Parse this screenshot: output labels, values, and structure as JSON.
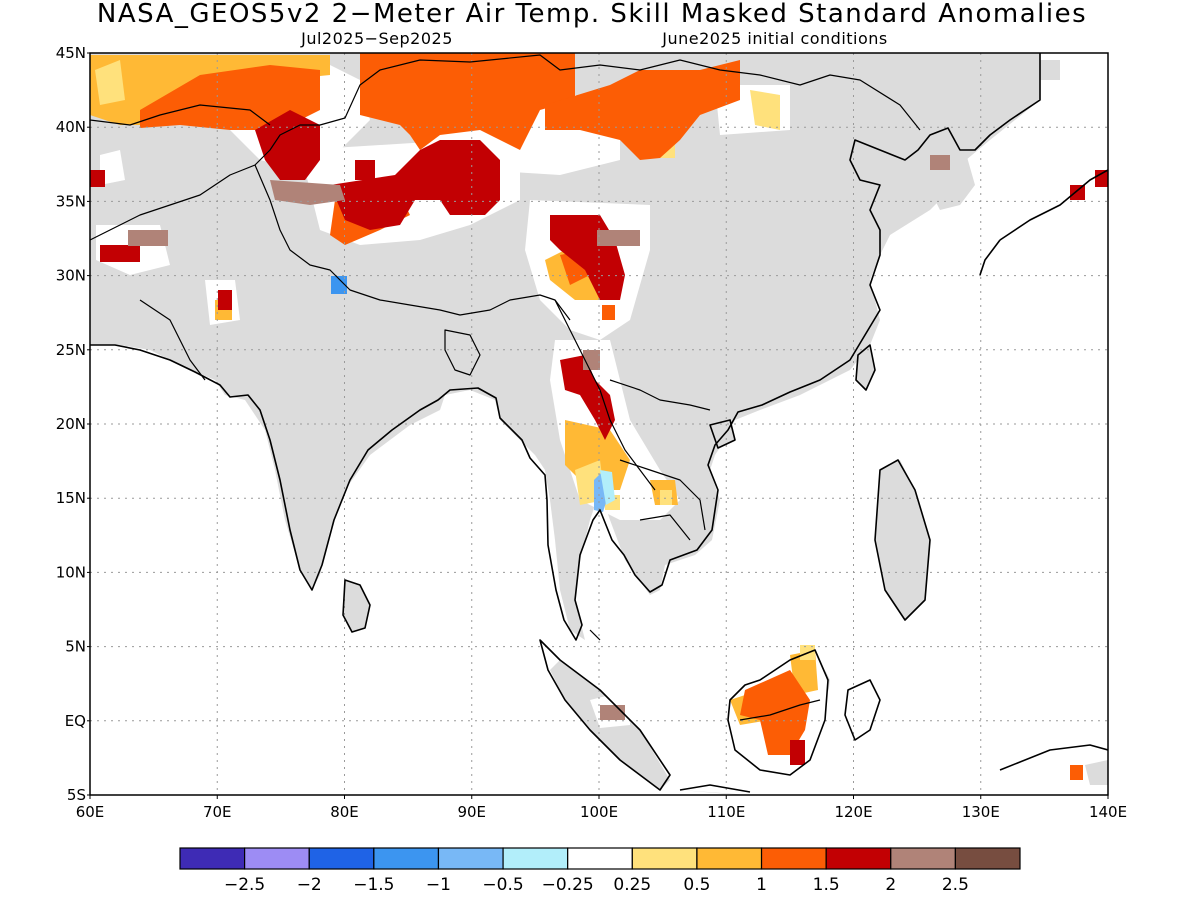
{
  "title": "NASA_GEOS5v2 2−Meter Air Temp. Skill Masked Standard Anomalies",
  "subtitle_left": "Jul2025−Sep2025",
  "subtitle_right": "June2025 initial conditions",
  "map": {
    "lon_range": [
      60,
      140
    ],
    "lat_range": [
      -5,
      45
    ],
    "lon_ticks": [
      {
        "value": 60,
        "label": "60E"
      },
      {
        "value": 70,
        "label": "70E"
      },
      {
        "value": 80,
        "label": "80E"
      },
      {
        "value": 90,
        "label": "90E"
      },
      {
        "value": 100,
        "label": "100E"
      },
      {
        "value": 110,
        "label": "110E"
      },
      {
        "value": 120,
        "label": "120E"
      },
      {
        "value": 130,
        "label": "130E"
      },
      {
        "value": 140,
        "label": "140E"
      }
    ],
    "lat_ticks": [
      {
        "value": -5,
        "label": "5S"
      },
      {
        "value": 0,
        "label": "EQ"
      },
      {
        "value": 5,
        "label": "5N"
      },
      {
        "value": 10,
        "label": "10N"
      },
      {
        "value": 15,
        "label": "15N"
      },
      {
        "value": 20,
        "label": "20N"
      },
      {
        "value": 25,
        "label": "25N"
      },
      {
        "value": 30,
        "label": "30N"
      },
      {
        "value": 35,
        "label": "35N"
      },
      {
        "value": 40,
        "label": "40N"
      },
      {
        "value": 45,
        "label": "45N"
      }
    ],
    "masked_color": "#dcdcdc",
    "anomaly_regions": [
      {
        "name": "mongolia-north",
        "level": 1.0,
        "lon": [
          84,
          95
        ],
        "lat": [
          38,
          45
        ]
      },
      {
        "name": "mongolia-east",
        "level": 1.0,
        "lon": [
          104,
          115
        ],
        "lat": [
          38,
          45
        ]
      },
      {
        "name": "mongolia-east-hot",
        "level": 1.5,
        "lon": [
          104,
          112
        ],
        "lat": [
          40,
          45
        ]
      },
      {
        "name": "kazakh-north",
        "level": 1.0,
        "lon": [
          60,
          78
        ],
        "lat": [
          41,
          45
        ]
      },
      {
        "name": "kazakh-warm",
        "level": 0.5,
        "lon": [
          60,
          66
        ],
        "lat": [
          41,
          45
        ]
      },
      {
        "name": "kyrgyz",
        "level": 2.0,
        "lon": [
          74,
          77
        ],
        "lat": [
          37,
          41
        ]
      },
      {
        "name": "western-tibet",
        "level": 2.0,
        "lon": [
          77,
          82
        ],
        "lat": [
          33,
          36
        ]
      },
      {
        "name": "tarim",
        "level": 2.0,
        "lon": [
          86,
          91
        ],
        "lat": [
          35,
          39
        ]
      },
      {
        "name": "qinghai",
        "level": 2.0,
        "lon": [
          96,
          101
        ],
        "lat": [
          28,
          34
        ]
      },
      {
        "name": "myanmar-north",
        "level": 2.0,
        "lon": [
          97,
          99.5
        ],
        "lat": [
          21,
          25
        ]
      },
      {
        "name": "pakistan",
        "level": 2.0,
        "lon": [
          61,
          64
        ],
        "lat": [
          31,
          32
        ]
      },
      {
        "name": "thailand-north",
        "level": 0.5,
        "lon": [
          97,
          100
        ],
        "lat": [
          16,
          19
        ]
      },
      {
        "name": "borneo",
        "level": 1.5,
        "lon": [
          112,
          117
        ],
        "lat": [
          -2,
          3
        ]
      },
      {
        "name": "borneo-edge",
        "level": 1.0,
        "lon": [
          110,
          113
        ],
        "lat": [
          0,
          2
        ]
      },
      {
        "name": "japan",
        "level": 2.0,
        "lon": [
          137,
          140
        ],
        "lat": [
          35,
          37
        ]
      },
      {
        "name": "sumatra-spot",
        "level": 2.5,
        "lon": [
          99,
          101
        ],
        "lat": [
          0,
          1
        ]
      },
      {
        "name": "india-spot",
        "level": -1.5,
        "lon": [
          79,
          80
        ],
        "lat": [
          29,
          30
        ]
      },
      {
        "name": "thailand-cool",
        "level": -1.0,
        "lon": [
          100,
          101
        ],
        "lat": [
          14,
          16
        ]
      }
    ]
  },
  "colorbar": {
    "colors": [
      "#3e2bb5",
      "#9d8cf4",
      "#1f63e6",
      "#3c95f0",
      "#78b8f6",
      "#b2eefa",
      "#ffffff",
      "#ffe17c",
      "#ffb935",
      "#fc5d05",
      "#c20003",
      "#b08378",
      "#774d40"
    ],
    "labels": [
      "−2.5",
      "−2",
      "−1.5",
      "−1",
      "−0.5",
      "−0.25",
      "0.25",
      "0.5",
      "1",
      "1.5",
      "2",
      "2.5"
    ]
  }
}
